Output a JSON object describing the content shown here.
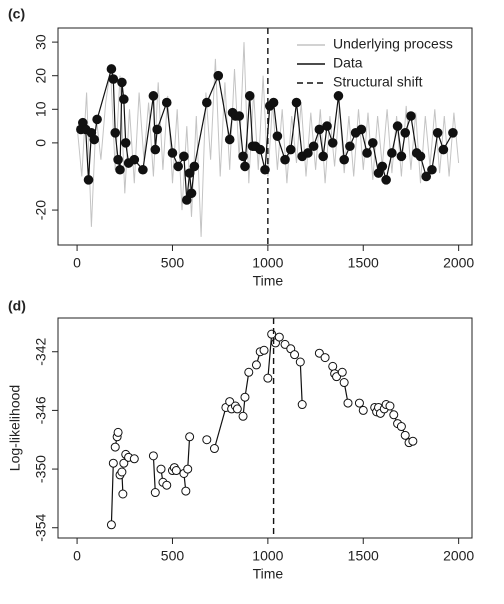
{
  "chart_data": [
    {
      "type": "line",
      "title": "(c)",
      "xlabel": "Time",
      "xlim": [
        -100,
        2070
      ],
      "ylim": [
        -30.4,
        34.2
      ],
      "xticks": [
        0,
        500,
        1000,
        1500,
        2000
      ],
      "yticks": [
        -20,
        0,
        10,
        20,
        30
      ],
      "legend": "top-right",
      "vline": {
        "name": "Structural shift",
        "x": 1000,
        "color": "#111111"
      },
      "series": [
        {
          "name": "Underlying process",
          "color": "#c4c4c4",
          "marker": "none",
          "x": [
            0,
            25,
            50,
            75,
            100,
            125,
            150,
            175,
            200,
            225,
            250,
            275,
            300,
            325,
            350,
            375,
            400,
            425,
            450,
            475,
            500,
            525,
            550,
            575,
            600,
            625,
            650,
            675,
            700,
            725,
            750,
            775,
            800,
            825,
            850,
            875,
            900,
            925,
            950,
            975,
            1000,
            1025,
            1050,
            1075,
            1100,
            1125,
            1150,
            1175,
            1200,
            1225,
            1250,
            1275,
            1300,
            1325,
            1350,
            1375,
            1400,
            1425,
            1450,
            1475,
            1500,
            1525,
            1550,
            1575,
            1600,
            1625,
            1650,
            1675,
            1700,
            1725,
            1750,
            1775,
            1800,
            1825,
            1850,
            1875,
            1900,
            1925,
            1950,
            1975,
            2000
          ],
          "values": [
            5,
            -10,
            15,
            -25,
            8,
            -5,
            12,
            22,
            -8,
            20,
            -15,
            10,
            -12,
            15,
            -5,
            12,
            -10,
            18,
            -8,
            14,
            -12,
            10,
            -20,
            5,
            -22,
            8,
            -28,
            15,
            -5,
            25,
            -10,
            18,
            -8,
            22,
            -5,
            30,
            -12,
            15,
            -8,
            20,
            -10,
            12,
            -8,
            10,
            -12,
            8,
            -6,
            12,
            -10,
            9,
            -8,
            10,
            -12,
            8,
            -7,
            11,
            -9,
            8,
            -10,
            10,
            -8,
            9,
            -11,
            8,
            -7,
            10,
            -9,
            8,
            -10,
            11,
            -8,
            9,
            -12,
            8,
            -7,
            10,
            -9,
            8,
            -10,
            9,
            -6
          ]
        },
        {
          "name": "Data",
          "color": "#111111",
          "marker": "filled",
          "x": [
            20,
            30,
            45,
            60,
            75,
            90,
            105,
            180,
            190,
            200,
            215,
            225,
            235,
            245,
            255,
            270,
            300,
            345,
            400,
            410,
            420,
            470,
            500,
            530,
            560,
            575,
            590,
            600,
            615,
            680,
            740,
            800,
            815,
            830,
            850,
            870,
            880,
            905,
            920,
            935,
            960,
            985,
            1010,
            1030,
            1050,
            1090,
            1120,
            1150,
            1180,
            1210,
            1240,
            1270,
            1290,
            1310,
            1340,
            1370,
            1400,
            1430,
            1460,
            1490,
            1520,
            1550,
            1580,
            1600,
            1620,
            1650,
            1680,
            1700,
            1720,
            1750,
            1780,
            1800,
            1830,
            1860,
            1890,
            1920,
            1970
          ],
          "values": [
            4,
            6,
            4,
            -11,
            3,
            1,
            7,
            22,
            19,
            3,
            -5,
            -8,
            18,
            13,
            0,
            -6,
            -5,
            -8,
            14,
            -2,
            4,
            12,
            -3,
            -7,
            -4,
            -17,
            -9,
            -15,
            -7,
            12,
            20,
            1,
            9,
            8,
            8,
            -4,
            -7,
            14,
            -1,
            -1,
            -2,
            -8,
            11,
            12,
            2,
            -5,
            -2,
            12,
            -4,
            -3,
            -1,
            4,
            -4,
            5,
            0,
            14,
            -5,
            -1,
            3,
            4,
            -3,
            0,
            -9,
            -7,
            -11,
            -3,
            5,
            -4,
            3,
            8,
            -3,
            -4,
            -10,
            -8,
            3,
            -2,
            3
          ]
        }
      ]
    },
    {
      "type": "scatter",
      "title": "(d)",
      "xlabel": "Time",
      "ylabel": "Log-likelihood",
      "xlim": [
        -100,
        2070
      ],
      "ylim": [
        -354.7,
        -339.7
      ],
      "xticks": [
        0,
        500,
        1000,
        1500,
        2000
      ],
      "yticks": [
        -354,
        -350,
        -346,
        -342
      ],
      "vline": {
        "x": 1030,
        "color": "#111111"
      },
      "series": [
        {
          "color": "#111111",
          "marker": "open",
          "x": [
            180,
            190,
            null,
            200,
            210,
            215,
            null,
            225,
            235,
            240,
            null,
            245,
            255,
            270,
            null,
            300,
            null,
            400,
            410,
            null,
            440,
            450,
            470,
            null,
            500,
            510,
            520,
            null,
            560,
            570,
            null,
            580,
            590,
            null,
            680,
            null,
            720,
            780,
            800,
            810,
            null,
            830,
            840,
            null,
            870,
            880,
            900,
            null,
            940,
            960,
            980,
            null,
            1000,
            1020,
            1040,
            1060,
            null,
            1090,
            1120,
            1140,
            null,
            1170,
            1180,
            null,
            1270,
            1300,
            null,
            1340,
            1350,
            1360,
            1390,
            null,
            1400,
            1420,
            null,
            1480,
            1500,
            null,
            1560,
            1570,
            1580,
            1590,
            1610,
            null,
            1620,
            1640,
            1660,
            1680,
            1700,
            1720,
            1740,
            1760
          ],
          "values": [
            -353.8,
            -349.6,
            null,
            -348.5,
            -347.8,
            -347.5,
            null,
            -350.4,
            -350.2,
            -351.7,
            null,
            -349.6,
            -349,
            -349.2,
            null,
            -349.3,
            null,
            -349.1,
            -351.6,
            null,
            -350,
            -350.9,
            -351.1,
            null,
            -350.1,
            -349.9,
            -350.1,
            null,
            -350.3,
            -351.5,
            null,
            -350,
            -347.8,
            null,
            -348,
            null,
            -348.6,
            -345.8,
            -345.4,
            -345.9,
            null,
            -345.7,
            -345.9,
            null,
            -346.4,
            -345.1,
            -343.4,
            null,
            -342.9,
            -342,
            -341.9,
            null,
            -343.8,
            -340.8,
            -341.4,
            -341,
            null,
            -341.5,
            -341.8,
            -342.2,
            null,
            -342.7,
            -345.6,
            null,
            -342.1,
            -342.4,
            null,
            -343,
            -343.5,
            -343.7,
            -343.4,
            null,
            -344.1,
            -345.5,
            null,
            -345.5,
            -346,
            null,
            -345.8,
            -346.1,
            -345.8,
            -346.2,
            -345.9,
            null,
            -345.6,
            -345.7,
            -346.3,
            -346.9,
            -347.1,
            -347.7,
            -348.2,
            -348.1
          ]
        }
      ]
    }
  ]
}
